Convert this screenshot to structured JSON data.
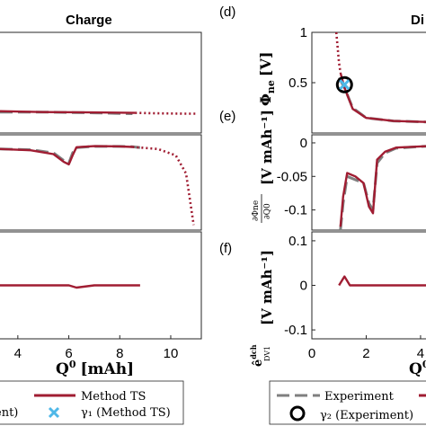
{
  "panel_titles": {
    "left": "Charge",
    "right": "Di"
  },
  "panel_letters": {
    "d": "(d)",
    "e": "(e)",
    "f": "(f)"
  },
  "axis_labels": {
    "x_left": "Q",
    "x_left_sup": "0",
    "x_left_unit": "[mAh]",
    "x_right": "Q",
    "x_right_sup": "0",
    "y_d": "Φ",
    "y_d_sub": "ne",
    "y_d_unit": "[V]",
    "y_e_frac_num": "∂Φne",
    "y_e_frac_den": "∂Q0",
    "y_e_unit": "[V mAh⁻¹]",
    "y_f": "ê",
    "y_f_sup": "dch",
    "y_f_sub": "DV1",
    "y_f_unit": "[V mAh⁻¹]"
  },
  "legend": {
    "method_ts": "Method TS",
    "gamma1_method_ts": "γ₁ (Method TS)",
    "experiment_left_partial": "ent)",
    "experiment": "Experiment",
    "gamma2_experiment": "γ₂ (Experiment)"
  },
  "colors": {
    "method_ts": "#a01d32",
    "experiment": "#7f7f7f",
    "gamma1_marker": "#4fb8e8",
    "gamma2_marker": "#000000"
  },
  "chart_data": [
    {
      "panel": "charge-top",
      "type": "line",
      "title": "Charge",
      "xlim": [
        3.3,
        11.2
      ],
      "ylim": [
        -0.2,
        1.0
      ],
      "series": [
        {
          "name": "Experiment",
          "style": "dashed",
          "x": [
            3.3,
            5,
            7,
            8.5
          ],
          "y": [
            0.05,
            0.05,
            0.04,
            0.03
          ]
        },
        {
          "name": "Method TS",
          "style": "solid",
          "x": [
            3.3,
            5,
            7,
            8.6
          ],
          "y": [
            0.06,
            0.05,
            0.045,
            0.04
          ]
        },
        {
          "name": "Method TS",
          "style": "dotted",
          "x": [
            8.6,
            9.5,
            10.5,
            11
          ],
          "y": [
            0.04,
            0.035,
            0.03,
            0.03
          ]
        }
      ]
    },
    {
      "panel": "charge-middle",
      "type": "line",
      "xlim": [
        3.3,
        11.2
      ],
      "ylim": [
        -0.32,
        0.05
      ],
      "series": [
        {
          "name": "Experiment",
          "style": "dashed",
          "x": [
            3.3,
            4.5,
            5.4,
            5.8,
            6.0,
            6.15,
            6.3,
            7,
            8,
            8.5,
            8.8
          ],
          "y": [
            -0.005,
            -0.008,
            -0.02,
            -0.05,
            -0.06,
            -0.02,
            0.0,
            0.005,
            0.005,
            0.004,
            0.0
          ]
        },
        {
          "name": "Method TS",
          "style": "solid",
          "x": [
            3.3,
            4.5,
            5.4,
            5.8,
            6.0,
            6.15,
            6.3,
            7,
            8,
            8.5
          ],
          "y": [
            -0.005,
            -0.01,
            -0.025,
            -0.055,
            -0.065,
            -0.03,
            0.002,
            0.006,
            0.005,
            0.003
          ]
        },
        {
          "name": "Method TS",
          "style": "dotted",
          "x": [
            8.5,
            9.5,
            10.2,
            10.6,
            10.9
          ],
          "y": [
            0.003,
            -0.005,
            -0.03,
            -0.1,
            -0.3
          ]
        }
      ]
    },
    {
      "panel": "charge-bottom",
      "type": "line",
      "xlim": [
        3.3,
        11.2
      ],
      "ylim": [
        -0.12,
        0.12
      ],
      "xticks": [
        4,
        6,
        8,
        10
      ],
      "xlabel": "Q0 [mAh]",
      "series": [
        {
          "name": "Method TS",
          "style": "solid",
          "x": [
            3.3,
            5,
            6.0,
            6.3,
            7,
            8.5,
            8.8
          ],
          "y": [
            0.0,
            0.0,
            0.0,
            -0.005,
            0.0,
            0.0,
            0.0
          ]
        }
      ]
    },
    {
      "panel": "d",
      "type": "line",
      "xlim": [
        0,
        4.2
      ],
      "ylim": [
        0,
        1.0
      ],
      "yticks": [
        0.5,
        1
      ],
      "ylabel": "Φne [V]",
      "series": [
        {
          "name": "Experiment",
          "style": "dashed",
          "x": [
            1.0,
            1.2,
            1.5,
            2,
            3,
            4.2
          ],
          "y": [
            0.55,
            0.45,
            0.25,
            0.15,
            0.12,
            0.11
          ]
        },
        {
          "name": "Method TS",
          "style": "solid",
          "x": [
            1.05,
            1.2,
            1.5,
            2,
            3,
            4.2
          ],
          "y": [
            0.6,
            0.45,
            0.24,
            0.15,
            0.12,
            0.11
          ]
        },
        {
          "name": "Method TS",
          "style": "dotted",
          "x": [
            0.9,
            0.95,
            1.0,
            1.05
          ],
          "y": [
            1.0,
            0.85,
            0.7,
            0.6
          ]
        }
      ],
      "markers": [
        {
          "name": "γ2 (Experiment)",
          "x": 1.2,
          "y": 0.48,
          "shape": "circle"
        },
        {
          "name": "γ1 (Method TS)",
          "x": 1.2,
          "y": 0.48,
          "shape": "x"
        }
      ]
    },
    {
      "panel": "e",
      "type": "line",
      "xlim": [
        0,
        4.2
      ],
      "ylim": [
        -0.13,
        0.012
      ],
      "yticks": [
        0,
        -0.05,
        -0.1
      ],
      "ylabel": "∂Φne/∂Q0 [V mAh-1]",
      "series": [
        {
          "name": "Experiment",
          "style": "dashed",
          "x": [
            1.05,
            1.15,
            1.3,
            1.6,
            1.9,
            2.1,
            2.25,
            2.4,
            2.7,
            3.1,
            4.2
          ],
          "y": [
            -0.13,
            -0.09,
            -0.05,
            -0.055,
            -0.06,
            -0.09,
            -0.1,
            -0.03,
            -0.015,
            -0.008,
            -0.005
          ]
        },
        {
          "name": "Method TS",
          "style": "solid",
          "x": [
            1.05,
            1.15,
            1.3,
            1.6,
            1.9,
            2.1,
            2.25,
            2.4,
            2.7,
            3.1,
            4.2
          ],
          "y": [
            -0.125,
            -0.08,
            -0.045,
            -0.05,
            -0.06,
            -0.095,
            -0.105,
            -0.025,
            -0.013,
            -0.007,
            -0.005
          ]
        }
      ]
    },
    {
      "panel": "f",
      "type": "line",
      "xlim": [
        0,
        4.2
      ],
      "ylim": [
        -0.12,
        0.12
      ],
      "xticks": [
        0,
        2,
        4
      ],
      "yticks": [
        0.1,
        0,
        -0.1
      ],
      "ylabel": "êdch DV1 [V mAh-1]",
      "series": [
        {
          "name": "Method TS",
          "style": "solid",
          "x": [
            1.0,
            1.2,
            1.4,
            2,
            3,
            4.2
          ],
          "y": [
            0.0,
            0.02,
            0.0,
            0.0,
            0.0,
            0.0
          ]
        }
      ]
    }
  ]
}
